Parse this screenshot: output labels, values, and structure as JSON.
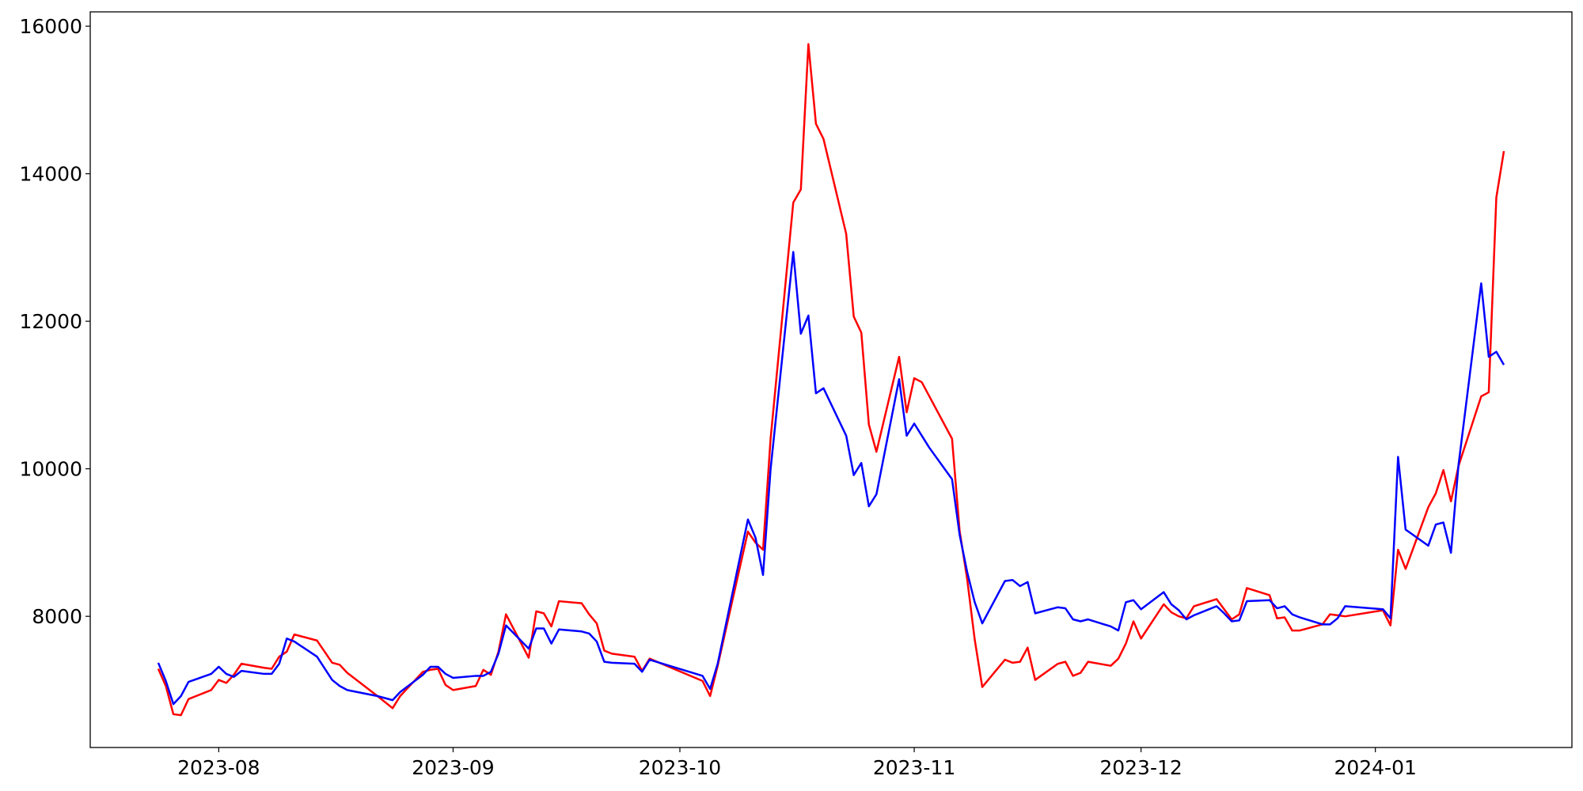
{
  "chart_data": {
    "type": "line",
    "x": [
      "2023-07-24",
      "2023-07-25",
      "2023-07-26",
      "2023-07-27",
      "2023-07-28",
      "2023-07-31",
      "2023-08-01",
      "2023-08-02",
      "2023-08-03",
      "2023-08-04",
      "2023-08-07",
      "2023-08-08",
      "2023-08-09",
      "2023-08-10",
      "2023-08-11",
      "2023-08-14",
      "2023-08-16",
      "2023-08-17",
      "2023-08-18",
      "2023-08-22",
      "2023-08-24",
      "2023-08-25",
      "2023-08-28",
      "2023-08-29",
      "2023-08-30",
      "2023-08-31",
      "2023-09-01",
      "2023-09-04",
      "2023-09-05",
      "2023-09-06",
      "2023-09-07",
      "2023-09-08",
      "2023-09-11",
      "2023-09-12",
      "2023-09-13",
      "2023-09-14",
      "2023-09-15",
      "2023-09-18",
      "2023-09-19",
      "2023-09-20",
      "2023-09-21",
      "2023-09-22",
      "2023-09-25",
      "2023-09-26",
      "2023-09-27",
      "2023-10-04",
      "2023-10-05",
      "2023-10-06",
      "2023-10-10",
      "2023-10-11",
      "2023-10-12",
      "2023-10-13",
      "2023-10-16",
      "2023-10-17",
      "2023-10-18",
      "2023-10-19",
      "2023-10-20",
      "2023-10-23",
      "2023-10-24",
      "2023-10-25",
      "2023-10-26",
      "2023-10-27",
      "2023-10-30",
      "2023-10-31",
      "2023-11-01",
      "2023-11-02",
      "2023-11-03",
      "2023-11-06",
      "2023-11-07",
      "2023-11-08",
      "2023-11-09",
      "2023-11-10",
      "2023-11-13",
      "2023-11-14",
      "2023-11-15",
      "2023-11-16",
      "2023-11-17",
      "2023-11-20",
      "2023-11-21",
      "2023-11-22",
      "2023-11-23",
      "2023-11-24",
      "2023-11-27",
      "2023-11-28",
      "2023-11-29",
      "2023-11-30",
      "2023-12-01",
      "2023-12-04",
      "2023-12-05",
      "2023-12-06",
      "2023-12-07",
      "2023-12-08",
      "2023-12-11",
      "2023-12-12",
      "2023-12-13",
      "2023-12-14",
      "2023-12-15",
      "2023-12-18",
      "2023-12-19",
      "2023-12-20",
      "2023-12-21",
      "2023-12-22",
      "2023-12-25",
      "2023-12-26",
      "2023-12-27",
      "2023-12-28",
      "2024-01-02",
      "2024-01-03",
      "2024-01-04",
      "2024-01-05",
      "2024-01-08",
      "2024-01-09",
      "2024-01-10",
      "2024-01-11",
      "2024-01-12",
      "2024-01-15",
      "2024-01-16",
      "2024-01-17",
      "2024-01-18"
    ],
    "series": [
      {
        "color": "#ff0000",
        "values": [
          7289,
          7056,
          6673,
          6660,
          6878,
          7001,
          7138,
          7097,
          7207,
          7357,
          7302,
          7289,
          7453,
          7521,
          7754,
          7672,
          7371,
          7343,
          7234,
          6919,
          6755,
          6919,
          7248,
          7275,
          7289,
          7070,
          7001,
          7056,
          7275,
          7207,
          7521,
          8027,
          7439,
          8068,
          8041,
          7863,
          8205,
          8178,
          8027,
          7904,
          7535,
          7494,
          7453,
          7261,
          7426,
          7124,
          6919,
          7330,
          9149,
          8999,
          8903,
          10408,
          13609,
          13787,
          15757,
          14676,
          14471,
          13185,
          12064,
          11846,
          10600,
          10231,
          11518,
          10766,
          11228,
          11174,
          10982,
          10408,
          9163,
          8506,
          7686,
          7042,
          7412,
          7371,
          7384,
          7576,
          7138,
          7357,
          7384,
          7193,
          7234,
          7384,
          7330,
          7426,
          7631,
          7932,
          7699,
          8164,
          8055,
          8000,
          7973,
          8137,
          8233,
          8096,
          7959,
          8027,
          8383,
          8287,
          7973,
          7986,
          7808,
          7808,
          7891,
          8027,
          8014,
          8000,
          8082,
          7877,
          8903,
          8643,
          9478,
          9669,
          9983,
          9559,
          10038,
          10982,
          11037,
          13677,
          14306
        ]
      },
      {
        "color": "#0000ff",
        "values": [
          7370,
          7124,
          6810,
          6919,
          7111,
          7220,
          7316,
          7220,
          7179,
          7261,
          7220,
          7220,
          7357,
          7699,
          7658,
          7453,
          7138,
          7056,
          7001,
          6919,
          6864,
          6974,
          7207,
          7316,
          7316,
          7220,
          7166,
          7193,
          7193,
          7248,
          7494,
          7877,
          7562,
          7836,
          7836,
          7631,
          7822,
          7795,
          7767,
          7658,
          7384,
          7371,
          7357,
          7248,
          7412,
          7193,
          7015,
          7357,
          9313,
          9067,
          8561,
          9997,
          12939,
          11831,
          12077,
          11023,
          11092,
          10449,
          9915,
          10079,
          9491,
          9655,
          11215,
          10449,
          10613,
          10449,
          10285,
          9860,
          9108,
          8602,
          8192,
          7904,
          8479,
          8493,
          8410,
          8465,
          8041,
          8123,
          8109,
          7959,
          7932,
          7959,
          7863,
          7808,
          8192,
          8219,
          8096,
          8328,
          8164,
          8082,
          7959,
          8014,
          8137,
          8041,
          7932,
          7945,
          8205,
          8219,
          8109,
          8137,
          8027,
          7986,
          7891,
          7891,
          7973,
          8137,
          8096,
          7973,
          10161,
          9176,
          8958,
          9245,
          9272,
          8862,
          10052,
          12514,
          11518,
          11586,
          11409
        ]
      }
    ],
    "xlim": [
      "2023-07-15",
      "2024-01-27"
    ],
    "xticks": [
      {
        "value": "2023-08-01",
        "label": "2023-08"
      },
      {
        "value": "2023-09-01",
        "label": "2023-09"
      },
      {
        "value": "2023-10-01",
        "label": "2023-10"
      },
      {
        "value": "2023-11-01",
        "label": "2023-11"
      },
      {
        "value": "2023-12-01",
        "label": "2023-12"
      },
      {
        "value": "2024-01-01",
        "label": "2024-01"
      }
    ],
    "ylim": [
      6222,
      16194
    ],
    "yticks": [
      8000,
      10000,
      12000,
      14000,
      16000
    ],
    "grid": false
  }
}
